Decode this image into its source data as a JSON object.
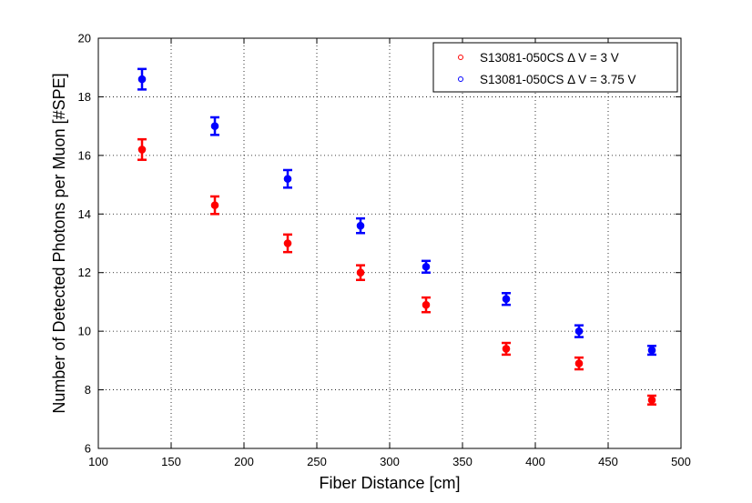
{
  "chart_data": {
    "type": "scatter",
    "title": "",
    "xlabel": "Fiber Distance [cm]",
    "ylabel": "Number of Detected Photons per Muon [#SPE]",
    "xlim": [
      100,
      500
    ],
    "ylim": [
      6,
      20
    ],
    "xticks": [
      100,
      150,
      200,
      250,
      300,
      350,
      400,
      450,
      500
    ],
    "yticks": [
      6,
      8,
      10,
      12,
      14,
      16,
      18,
      20
    ],
    "grid": true,
    "legend_position": "top-right",
    "series": [
      {
        "name": "S13081-050CS Δ V = 3 V",
        "color": "#ff0000",
        "x": [
          130,
          180,
          230,
          280,
          325,
          380,
          430,
          480
        ],
        "y": [
          16.2,
          14.3,
          13.0,
          12.0,
          10.9,
          9.4,
          8.9,
          7.65
        ],
        "err": [
          0.35,
          0.3,
          0.3,
          0.25,
          0.25,
          0.2,
          0.2,
          0.15
        ]
      },
      {
        "name": "S13081-050CS Δ V = 3.75 V",
        "color": "#0000ff",
        "x": [
          130,
          180,
          230,
          280,
          325,
          380,
          430,
          480
        ],
        "y": [
          18.6,
          17.0,
          15.2,
          13.6,
          12.2,
          11.1,
          10.0,
          9.35
        ],
        "err": [
          0.35,
          0.3,
          0.3,
          0.25,
          0.2,
          0.2,
          0.2,
          0.15
        ]
      }
    ]
  }
}
